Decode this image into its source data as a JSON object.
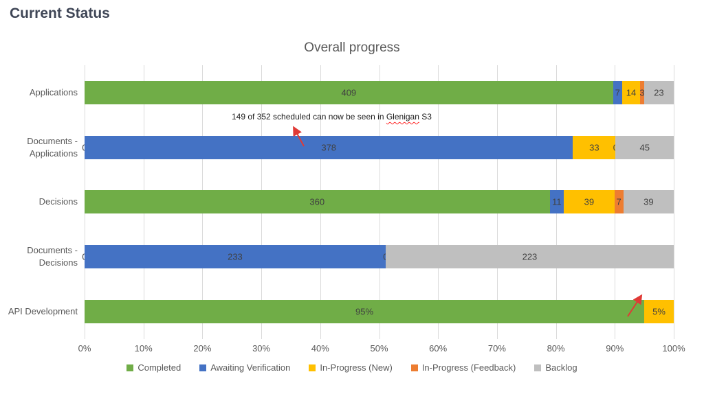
{
  "page": {
    "heading": "Current Status"
  },
  "colors": {
    "completed_green": "#70AD47",
    "awaiting_blue": "#4472C4",
    "inprogress_new_yellow": "#FFC000",
    "inprogress_feedback_orange": "#ED7D31",
    "backlog_gray": "#BFBFBF",
    "annotation_red": "#e03a36"
  },
  "chart_data": {
    "type": "bar",
    "orientation": "horizontal",
    "stacked": true,
    "title": "Overall progress",
    "legend_position": "bottom",
    "gridlines": "vertical",
    "x_axis": {
      "min": 0,
      "max": 100,
      "ticks": [
        "0%",
        "10%",
        "20%",
        "30%",
        "40%",
        "50%",
        "60%",
        "70%",
        "80%",
        "90%",
        "100%"
      ]
    },
    "categories": [
      "Applications",
      "Documents - Applications",
      "Decisions",
      "Documents - Decisions",
      "API Development"
    ],
    "series_legend": [
      {
        "name": "Completed",
        "color": "#70AD47"
      },
      {
        "name": "Awaiting Verification",
        "color": "#4472C4"
      },
      {
        "name": "In-Progress (New)",
        "color": "#FFC000"
      },
      {
        "name": "In-Progress (Feedback)",
        "color": "#ED7D31"
      },
      {
        "name": "Backlog",
        "color": "#BFBFBF"
      }
    ],
    "rows": [
      {
        "category": "Applications",
        "segments": [
          {
            "series": "Completed",
            "value": 409,
            "label": "409"
          },
          {
            "series": "Awaiting Verification",
            "value": 7,
            "label": "7"
          },
          {
            "series": "In-Progress (New)",
            "value": 14,
            "label": "14"
          },
          {
            "series": "In-Progress (Feedback)",
            "value": 3,
            "label": "3"
          },
          {
            "series": "Backlog",
            "value": 23,
            "label": "23"
          }
        ]
      },
      {
        "category": "Documents - Applications",
        "segments": [
          {
            "series": "Completed",
            "value": 0,
            "label": "0"
          },
          {
            "series": "Awaiting Verification",
            "value": 378,
            "label": "378"
          },
          {
            "series": "In-Progress (New)",
            "value": 33,
            "label": "33"
          },
          {
            "series": "In-Progress (Feedback)",
            "value": 0,
            "label": "0"
          },
          {
            "series": "Backlog",
            "value": 45,
            "label": "45"
          }
        ]
      },
      {
        "category": "Decisions",
        "segments": [
          {
            "series": "Completed",
            "value": 360,
            "label": "360"
          },
          {
            "series": "Awaiting Verification",
            "value": 11,
            "label": "11"
          },
          {
            "series": "In-Progress (New)",
            "value": 39,
            "label": "39"
          },
          {
            "series": "In-Progress (Feedback)",
            "value": 7,
            "label": "7"
          },
          {
            "series": "Backlog",
            "value": 39,
            "label": "39"
          }
        ]
      },
      {
        "category": "Documents - Decisions",
        "segments": [
          {
            "series": "Completed",
            "value": 0,
            "label": "0"
          },
          {
            "series": "Awaiting Verification",
            "value": 233,
            "label": "233"
          },
          {
            "series": "In-Progress (New)",
            "value": 0,
            "label": "0"
          },
          {
            "series": "Backlog",
            "value": 223,
            "label": "223"
          }
        ]
      },
      {
        "category": "API Development",
        "segments": [
          {
            "series": "Completed",
            "value": 95,
            "label": "95%"
          },
          {
            "series": "In-Progress (New)",
            "value": 5,
            "label": "5%"
          }
        ]
      }
    ],
    "annotation": {
      "prefix": "149 of 352 scheduled can now be seen in ",
      "misspelled_word": "Glenigan",
      "suffix": " S3"
    }
  }
}
